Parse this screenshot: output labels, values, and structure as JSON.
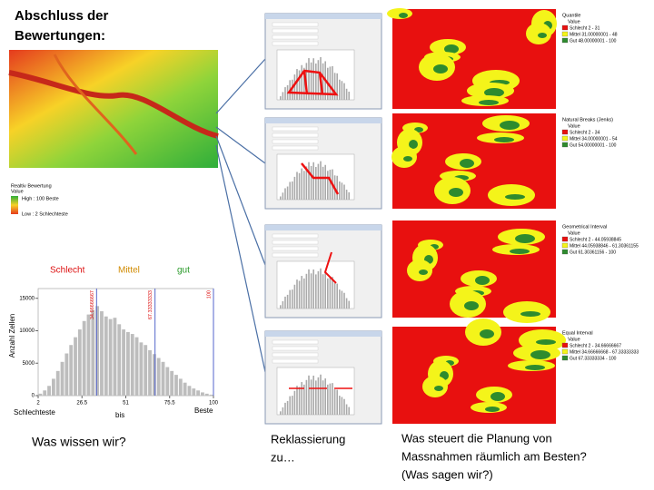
{
  "title": [
    "Abschluss der",
    "Bewertungen:"
  ],
  "raster_legend": {
    "title": "Realtiv Bewertung",
    "value": "Value",
    "high": "High : 100 Beste",
    "low": "Low : 2 Schlechteste"
  },
  "classes": [
    "Schlecht",
    "Mittel",
    "gut"
  ],
  "histogram": {
    "ylabel": "Anzahl Zellen",
    "bins": [
      2,
      4.45,
      6.9,
      9.35,
      11.8,
      14.25,
      16.7,
      19.15,
      21.6,
      24.05,
      26.5,
      28.95,
      31.4,
      33.85,
      36.3,
      38.75,
      41.2,
      43.65,
      46.1,
      48.55,
      51,
      53.45,
      55.9,
      58.35,
      60.8,
      63.25,
      65.7,
      68.15,
      70.6,
      73.05,
      75.5,
      77.95,
      80.4,
      82.85,
      85.3,
      87.75,
      90.2,
      92.65,
      95.1,
      97.55,
      100
    ],
    "counts": [
      300,
      800,
      1500,
      2600,
      3800,
      5200,
      6500,
      7800,
      9000,
      10200,
      11500,
      12500,
      13200,
      13800,
      13000,
      12200,
      11800,
      12000,
      11000,
      10200,
      9800,
      9500,
      9000,
      8200,
      7800,
      7000,
      6400,
      5800,
      5200,
      4400,
      3800,
      3200,
      2600,
      2000,
      1500,
      1100,
      800,
      500,
      300,
      150
    ],
    "xlim": [
      2,
      100
    ],
    "ylim": [
      0,
      16500
    ],
    "xticks": [
      2,
      26.5,
      51,
      75.5,
      100
    ],
    "yticks": [
      0,
      5000,
      10000,
      15000
    ],
    "breaks": [
      34.66666667,
      67.33333333,
      100
    ]
  },
  "axis_labels": [
    "Schlechteste",
    "bis",
    "Beste"
  ],
  "question": "Was wissen wir?",
  "reclass": [
    "Reklassierung",
    "zu…"
  ],
  "steering": [
    "Was steuert die Planung von",
    "Massnahmen räumlich am Besten?",
    "(Was sagen wir?)"
  ],
  "maps": [
    {
      "title": "Quantile",
      "value": "Value",
      "items": [
        "Schlecht 2 - 31",
        "Mittel 31.00000001 - 48",
        "Gut 48.00000001 - 100"
      ]
    },
    {
      "title": "Natural Breaks (Jenks)",
      "value": "Value",
      "items": [
        "Schlecht 2 - 34",
        "Mittel 34.00000001 - 54",
        "Gut 54.00000001 - 100"
      ]
    },
    {
      "title": "Geometrical Interval",
      "value": "Value",
      "items": [
        "Schlecht 2 - 44.05938845",
        "Mittel 44.05938846 - 61.30361155",
        "Gut 61.30361156 - 100"
      ]
    },
    {
      "title": "Equal Interval",
      "value": "Value",
      "items": [
        "Schlecht 2 - 34.66666667",
        "Mittel 34.66666668 - 67.33333333",
        "Gut 67.33333334 - 100"
      ]
    }
  ]
}
